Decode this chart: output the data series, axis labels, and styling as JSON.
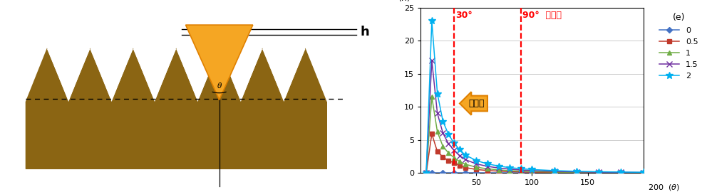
{
  "xlim": [
    0,
    200
  ],
  "ylim": [
    0,
    25
  ],
  "vline1": 30,
  "vline2": 90,
  "vline1_label": "30°",
  "vline2_label": "90°  프리즘",
  "arrow_label": "예각화",
  "series": [
    {
      "e": "0",
      "color": "#4472C4",
      "marker": "D",
      "data_x": [
        5,
        10,
        20,
        30,
        40,
        50,
        60,
        70,
        80,
        90,
        100,
        120,
        140,
        160,
        180,
        200
      ],
      "data_y": [
        0.0,
        0.0,
        0.0,
        0.0,
        0.0,
        0.0,
        0.0,
        0.0,
        0.0,
        0.0,
        0.0,
        0.0,
        0.0,
        0.0,
        0.0,
        0.0
      ]
    },
    {
      "e": "0.5",
      "color": "#C0392B",
      "marker": "s",
      "data_x": [
        5,
        10,
        15,
        20,
        25,
        30,
        35,
        40,
        50,
        60,
        70,
        80,
        90,
        100,
        120,
        140,
        160,
        180,
        200
      ],
      "data_y": [
        0.0,
        5.9,
        3.2,
        2.4,
        1.8,
        1.55,
        1.1,
        0.8,
        0.5,
        0.35,
        0.25,
        0.18,
        0.14,
        0.1,
        0.06,
        0.04,
        0.02,
        0.01,
        0.0
      ]
    },
    {
      "e": "1",
      "color": "#70AD47",
      "marker": "^",
      "data_x": [
        5,
        10,
        15,
        20,
        25,
        30,
        35,
        40,
        50,
        60,
        70,
        80,
        90,
        100,
        120,
        140,
        160,
        180,
        200
      ],
      "data_y": [
        0.0,
        11.5,
        6.2,
        4.0,
        3.0,
        2.3,
        1.7,
        1.3,
        0.85,
        0.6,
        0.44,
        0.32,
        0.25,
        0.19,
        0.12,
        0.08,
        0.05,
        0.03,
        0.01
      ]
    },
    {
      "e": "1.5",
      "color": "#7030A0",
      "marker": "x",
      "data_x": [
        5,
        10,
        15,
        20,
        25,
        30,
        35,
        40,
        50,
        60,
        70,
        80,
        90,
        100,
        120,
        140,
        160,
        180,
        200
      ],
      "data_y": [
        0.0,
        17.0,
        9.0,
        6.0,
        4.4,
        3.4,
        2.6,
        2.0,
        1.35,
        0.98,
        0.73,
        0.55,
        0.43,
        0.34,
        0.22,
        0.15,
        0.1,
        0.07,
        0.05
      ]
    },
    {
      "e": "2",
      "color": "#00B0F0",
      "marker": "*",
      "data_x": [
        5,
        10,
        15,
        20,
        25,
        30,
        35,
        40,
        50,
        60,
        70,
        80,
        90,
        100,
        120,
        140,
        160,
        180,
        200
      ],
      "data_y": [
        0.0,
        23.0,
        12.0,
        7.8,
        5.8,
        4.5,
        3.5,
        2.7,
        1.85,
        1.35,
        1.02,
        0.78,
        0.62,
        0.5,
        0.33,
        0.23,
        0.16,
        0.11,
        0.08
      ]
    }
  ],
  "bg_color": "#FFFFFF",
  "grid_color": "#CCCCCC",
  "diagram_brown": "#8B6513",
  "diagram_orange": "#F5A623",
  "diagram_dark_orange": "#E08000"
}
